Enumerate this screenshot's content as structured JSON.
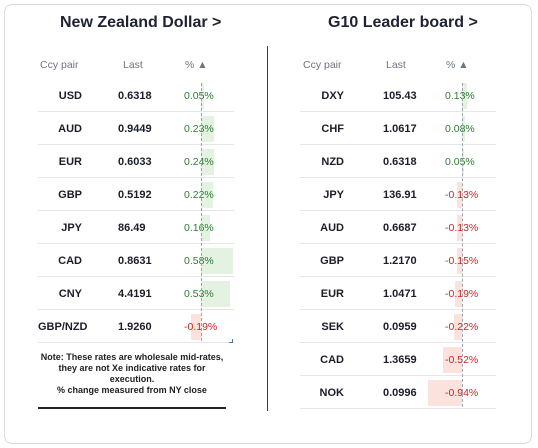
{
  "left": {
    "title": "New Zealand Dollar >",
    "headers": {
      "pair": "Ccy pair",
      "last": "Last",
      "pct": "% ▲"
    },
    "rows": [
      {
        "ccy": "USD",
        "last": "0.6318",
        "pct": "0.05%",
        "val": 0.05
      },
      {
        "ccy": "AUD",
        "last": "0.9449",
        "pct": "0.23%",
        "val": 0.23
      },
      {
        "ccy": "EUR",
        "last": "0.6033",
        "pct": "0.24%",
        "val": 0.24
      },
      {
        "ccy": "GBP",
        "last": "0.5192",
        "pct": "0.22%",
        "val": 0.22
      },
      {
        "ccy": "JPY",
        "last": "86.49",
        "pct": "0.16%",
        "val": 0.16
      },
      {
        "ccy": "CAD",
        "last": "0.8631",
        "pct": "0.58%",
        "val": 0.58
      },
      {
        "ccy": "CNY",
        "last": "4.4191",
        "pct": "0.53%",
        "val": 0.53
      },
      {
        "ccy": "GBP/NZD",
        "last": "1.9260",
        "pct": "-0.19%",
        "val": -0.19
      }
    ],
    "note": "Note: These rates are wholesale mid-rates, they are not Xe indicative rates for execution.\n% change measured from NY close"
  },
  "right": {
    "title": "G10 Leader board >",
    "headers": {
      "pair": "Ccy pair",
      "last": "Last",
      "pct": "% ▲"
    },
    "rows": [
      {
        "ccy": "DXY",
        "last": "105.43",
        "pct": "0.13%",
        "val": 0.13
      },
      {
        "ccy": "CHF",
        "last": "1.0617",
        "pct": "0.08%",
        "val": 0.08
      },
      {
        "ccy": "NZD",
        "last": "0.6318",
        "pct": "0.05%",
        "val": 0.05
      },
      {
        "ccy": "JPY",
        "last": "136.91",
        "pct": "-0.13%",
        "val": -0.13
      },
      {
        "ccy": "AUD",
        "last": "0.6687",
        "pct": "-0.13%",
        "val": -0.13
      },
      {
        "ccy": "GBP",
        "last": "1.2170",
        "pct": "-0.15%",
        "val": -0.15
      },
      {
        "ccy": "EUR",
        "last": "1.0471",
        "pct": "-0.19%",
        "val": -0.19
      },
      {
        "ccy": "SEK",
        "last": "0.0959",
        "pct": "-0.22%",
        "val": -0.22
      },
      {
        "ccy": "CAD",
        "last": "1.3659",
        "pct": "-0.52%",
        "val": -0.52
      },
      {
        "ccy": "NOK",
        "last": "0.0996",
        "pct": "-0.94%",
        "val": -0.94
      }
    ]
  },
  "colors": {
    "positive_text": "#2e7d32",
    "negative_text": "#c62828",
    "positive_bar": "#e3f2e1",
    "negative_bar": "#fbe2dc"
  }
}
